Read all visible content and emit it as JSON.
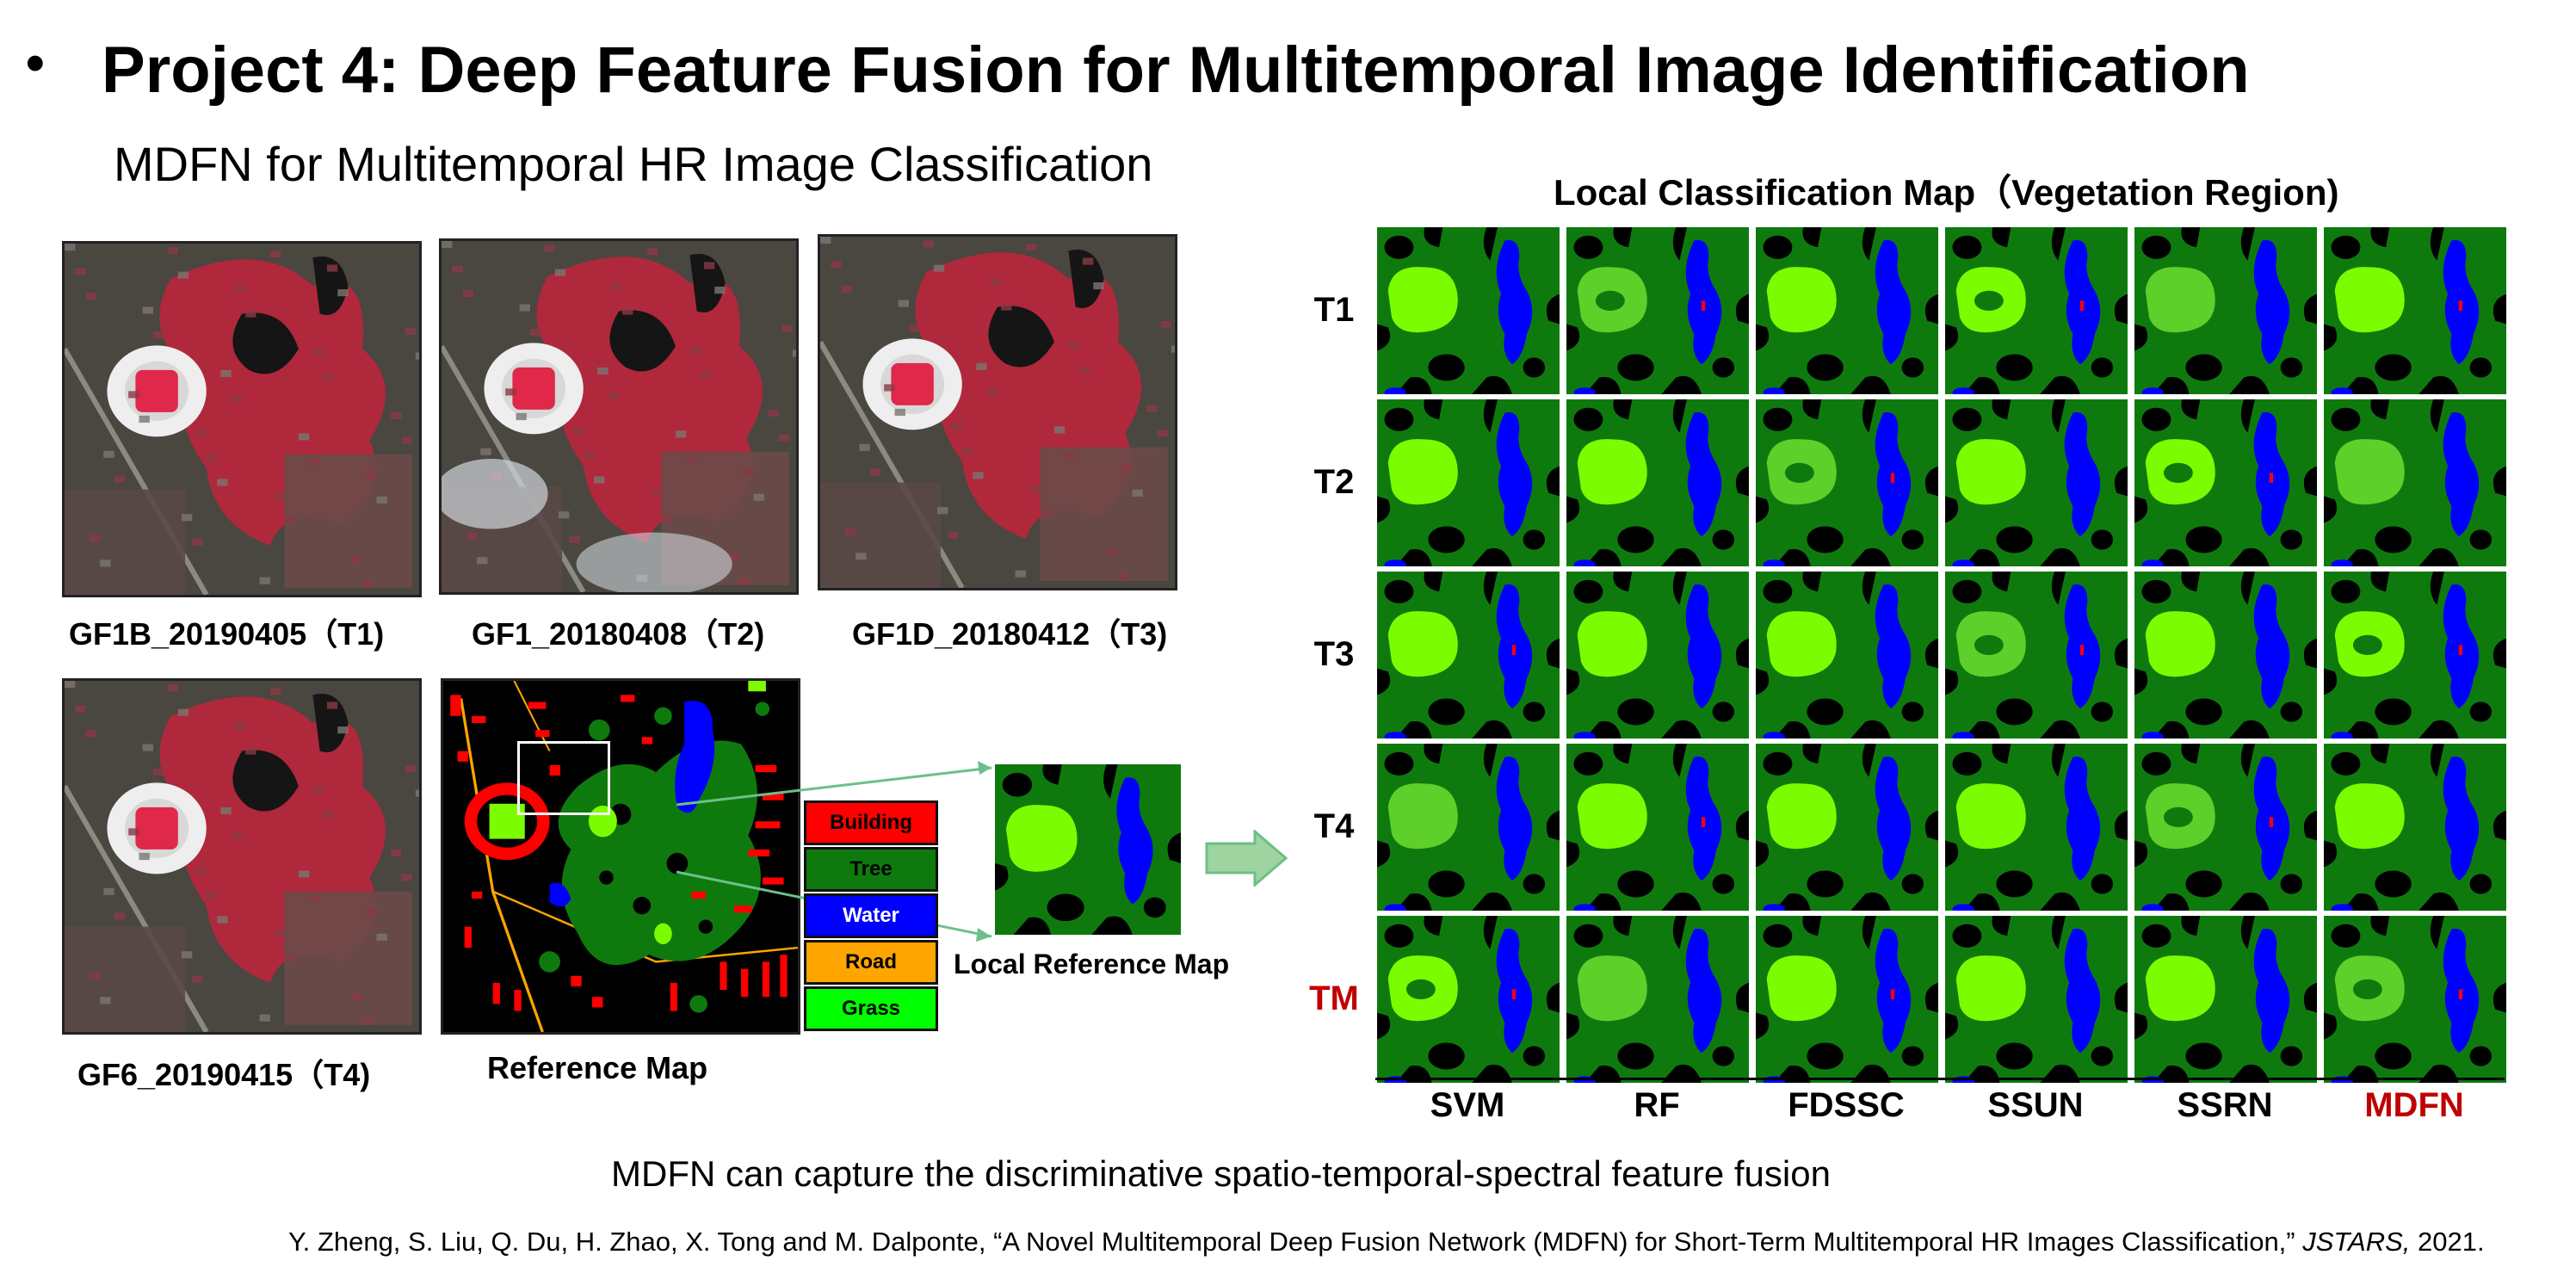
{
  "header": {
    "bullet": "•",
    "title": "Project 4: Deep Feature Fusion for Multitemporal Image Identification",
    "subtitle": "MDFN for Multitemporal HR Image Classification"
  },
  "images": {
    "t1": "GF1B_20190405（T1)",
    "t2": "GF1_20180408（T2)",
    "t3": "GF1D_20180412（T3)",
    "t4": "GF6_20190415（T4)",
    "reference": "Reference Map",
    "local_reference": "Local Reference Map"
  },
  "legend": [
    {
      "label": "Building",
      "color": "#ff0000",
      "text_color": "#000000"
    },
    {
      "label": "Tree",
      "color": "#0e7a0e",
      "text_color": "#000000"
    },
    {
      "label": "Water",
      "color": "#0000ff",
      "text_color": "#ffffff"
    },
    {
      "label": "Road",
      "color": "#ffa500",
      "text_color": "#000000"
    },
    {
      "label": "Grass",
      "color": "#00ff00",
      "text_color": "#000000"
    }
  ],
  "classification": {
    "title": "Local Classification Map（Vegetation Region)",
    "rows": [
      {
        "label": "T1",
        "color": "#000000"
      },
      {
        "label": "T2",
        "color": "#000000"
      },
      {
        "label": "T3",
        "color": "#000000"
      },
      {
        "label": "T4",
        "color": "#000000"
      },
      {
        "label": "TM",
        "color": "#c00000"
      }
    ],
    "columns": [
      {
        "label": "SVM",
        "color": "#000000"
      },
      {
        "label": "RF",
        "color": "#000000"
      },
      {
        "label": "FDSSC",
        "color": "#000000"
      },
      {
        "label": "SSUN",
        "color": "#000000"
      },
      {
        "label": "SSRN",
        "color": "#000000"
      },
      {
        "label": "MDFN",
        "color": "#c00000"
      }
    ]
  },
  "footer": {
    "statement": "MDFN can capture the discriminative spatio-temporal-spectral feature fusion",
    "citation_pre": "Y. Zheng, S. Liu, Q. Du, H. Zhao, X. Tong and M. Dalponte, “A Novel Multitemporal Deep Fusion Network (MDFN) for Short-Term Multitemporal HR Images Classification,” ",
    "citation_journal": "JSTARS,",
    "citation_post": " 2021."
  },
  "colors": {
    "vegetation_red": "#b0283c",
    "grass": "#7cfc00",
    "tree": "#0e7a0e",
    "water": "#0000ff",
    "arrow": "#9fd39f",
    "arrow_border": "#6dbf8a"
  }
}
